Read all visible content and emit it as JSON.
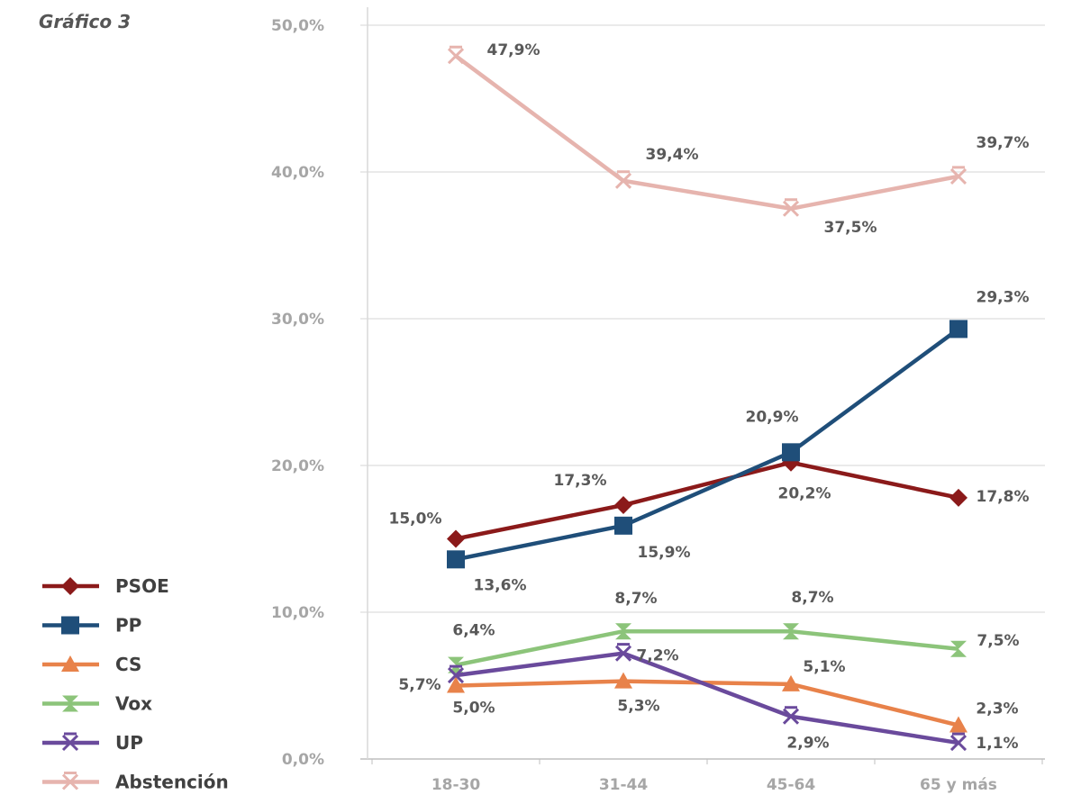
{
  "chart_data": {
    "type": "line",
    "title": "Gráfico 3",
    "categories": [
      "18-30",
      "31-44",
      "45-64",
      "65 y más"
    ],
    "ylim": [
      0,
      50
    ],
    "yticks": [
      "0,0%",
      "10,0%",
      "20,0%",
      "30,0%",
      "40,0%",
      "50,0%"
    ],
    "grid": true,
    "legend": "bottom-left",
    "series": [
      {
        "name": "PSOE",
        "color": "#8b1a1a",
        "marker": "diamond",
        "values": [
          15.0,
          17.3,
          20.2,
          17.8
        ],
        "labels": [
          "15,0%",
          "17,3%",
          "20,2%",
          "17,8%"
        ]
      },
      {
        "name": "PP",
        "color": "#1f4e79",
        "marker": "square",
        "values": [
          13.6,
          15.9,
          20.9,
          29.3
        ],
        "labels": [
          "13,6%",
          "15,9%",
          "20,9%",
          "29,3%"
        ]
      },
      {
        "name": "CS",
        "color": "#e8824a",
        "marker": "triangle",
        "values": [
          5.0,
          5.3,
          5.1,
          2.3
        ],
        "labels": [
          "5,0%",
          "5,3%",
          "5,1%",
          "2,3%"
        ]
      },
      {
        "name": "Vox",
        "color": "#8cc47a",
        "marker": "hourglass",
        "values": [
          6.4,
          8.7,
          8.7,
          7.5
        ],
        "labels": [
          "6,4%",
          "8,7%",
          "8,7%",
          "7,5%"
        ]
      },
      {
        "name": "UP",
        "color": "#6a4a9c",
        "marker": "x",
        "values": [
          5.7,
          7.2,
          2.9,
          1.1
        ],
        "labels": [
          "5,7%",
          "7,2%",
          "2,9%",
          "1,1%"
        ]
      },
      {
        "name": "Abstención",
        "color": "#e6b4ae",
        "marker": "x",
        "values": [
          47.9,
          39.4,
          37.5,
          39.7
        ],
        "labels": [
          "47,9%",
          "39,4%",
          "37,5%",
          "39,7%"
        ]
      }
    ]
  }
}
